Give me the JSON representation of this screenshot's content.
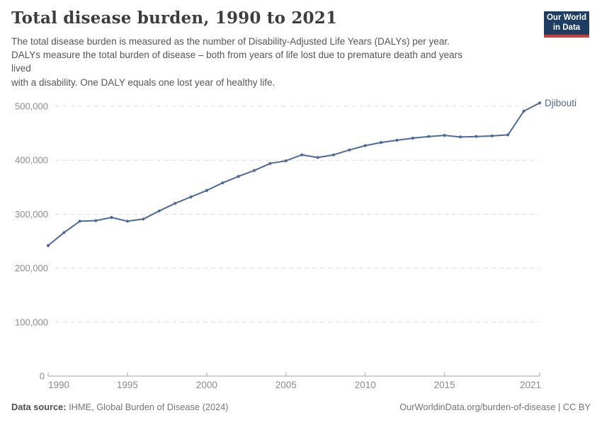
{
  "header": {
    "title": "Total disease burden, 1990 to 2021",
    "subtitle_lines": [
      "The total disease burden is measured as the number of Disability-Adjusted Life Years (DALYs) per year.",
      "DALYs measure the total burden of disease – both from years of life lost due to premature death and years",
      "lived",
      "with a disability. One DALY equals one lost year of healthy life."
    ],
    "logo": {
      "line1": "Our World",
      "line2": "in Data"
    }
  },
  "footer": {
    "datasource_label": "Data source:",
    "datasource_value": " IHME, Global Burden of Disease (2024)",
    "link": "OurWorldinData.org/burden-of-disease | CC BY"
  },
  "chart_data": {
    "type": "line",
    "title": "Total disease burden, 1990 to 2021",
    "xlabel": "",
    "ylabel": "",
    "entity_label": "Djibouti",
    "x": [
      1990,
      1991,
      1992,
      1993,
      1994,
      1995,
      1996,
      1997,
      1998,
      1999,
      2000,
      2001,
      2002,
      2003,
      2004,
      2005,
      2006,
      2007,
      2008,
      2009,
      2010,
      2011,
      2012,
      2013,
      2014,
      2015,
      2016,
      2017,
      2018,
      2019,
      2020,
      2021
    ],
    "series": [
      {
        "name": "Djibouti",
        "values": [
          242000,
          266000,
          287000,
          288000,
          294000,
          287000,
          291000,
          306000,
          320000,
          332000,
          344000,
          358000,
          370000,
          381000,
          394000,
          399000,
          410000,
          405000,
          410000,
          419000,
          427000,
          433000,
          437000,
          441000,
          444000,
          446000,
          443000,
          444000,
          445000,
          447000,
          491000,
          506000
        ]
      }
    ],
    "ylim": [
      0,
      500000
    ],
    "yticks": [
      0,
      100000,
      200000,
      300000,
      400000,
      500000
    ],
    "ytick_labels": [
      "0",
      "100,000",
      "200,000",
      "300,000",
      "400,000",
      "500,000"
    ],
    "xticks": [
      1990,
      1995,
      2000,
      2005,
      2010,
      2015,
      2021
    ],
    "xtick_labels": [
      "1990",
      "1995",
      "2000",
      "2005",
      "2010",
      "2015",
      "2021"
    ],
    "grid": true,
    "legend_position": "end-of-line-label",
    "colors": {
      "line": "#4c6a9c",
      "grid": "#dcdcdc",
      "axis": "#a3a3a3",
      "tick_text": "#8b8b8b",
      "logo_bg": "#1d3d63",
      "logo_accent": "#d13b33"
    }
  }
}
